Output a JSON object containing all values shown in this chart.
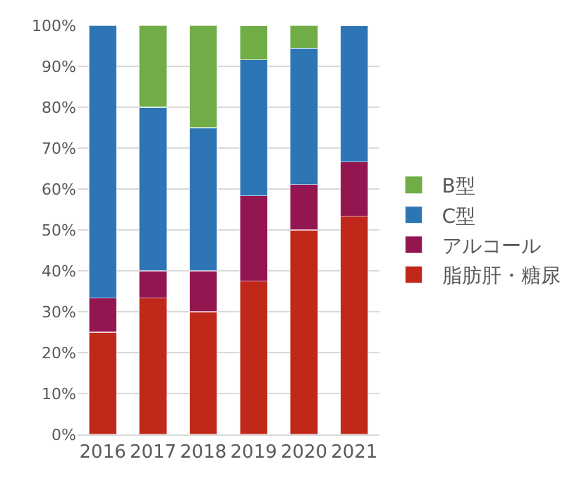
{
  "chart_data": {
    "type": "bar",
    "stacked": true,
    "categories": [
      "2016",
      "2017",
      "2018",
      "2019",
      "2020",
      "2021"
    ],
    "series": [
      {
        "name": "脂肪肝・糖尿",
        "color": "#c0281a",
        "values": [
          25,
          33.3,
          30,
          37.5,
          50,
          53.3
        ]
      },
      {
        "name": "アルコール",
        "color": "#941651",
        "values": [
          8.3,
          6.7,
          10,
          20.8,
          11.1,
          13.3
        ]
      },
      {
        "name": "C型",
        "color": "#2e75b6",
        "values": [
          66.7,
          40,
          35,
          33.3,
          33.3,
          33.3
        ]
      },
      {
        "name": "B型",
        "color": "#70ad47",
        "values": [
          0,
          20,
          25,
          8.3,
          5.6,
          0
        ]
      }
    ],
    "ylim": [
      0,
      100
    ],
    "yticks": [
      {
        "value": 0,
        "label": "0%"
      },
      {
        "value": 10,
        "label": "10%"
      },
      {
        "value": 20,
        "label": "20%"
      },
      {
        "value": 30,
        "label": "30%"
      },
      {
        "value": 40,
        "label": "40%"
      },
      {
        "value": 50,
        "label": "50%"
      },
      {
        "value": 60,
        "label": "60%"
      },
      {
        "value": 70,
        "label": "70%"
      },
      {
        "value": 80,
        "label": "80%"
      },
      {
        "value": 90,
        "label": "90%"
      },
      {
        "value": 100,
        "label": "100%"
      }
    ],
    "grid": "y",
    "legend": "right"
  }
}
